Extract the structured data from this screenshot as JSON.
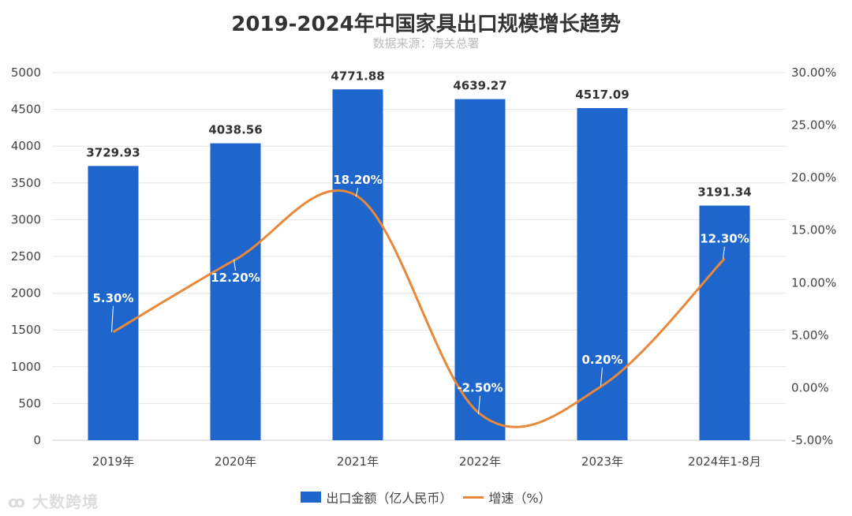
{
  "chart_data": {
    "type": "bar+line",
    "title": "2019-2024年中国家具出口规模增长趋势",
    "subtitle": "数据来源：海关总署",
    "categories": [
      "2019年",
      "2020年",
      "2021年",
      "2022年",
      "2023年",
      "2024年1-8月"
    ],
    "series": [
      {
        "name": "出口金额（亿人民币）",
        "type": "bar",
        "axis": "left",
        "color": "#1f66cc",
        "values": [
          3729.93,
          4038.56,
          4771.88,
          4639.27,
          4517.09,
          3191.34
        ],
        "labels": [
          "3729.93",
          "4038.56",
          "4771.88",
          "4639.27",
          "4517.09",
          "3191.34"
        ]
      },
      {
        "name": "增速（%）",
        "type": "line",
        "axis": "right",
        "color": "#e8883a",
        "smooth": true,
        "values": [
          5.3,
          12.2,
          18.2,
          -2.5,
          0.2,
          12.3
        ],
        "labels": [
          "5.30%",
          "12.20%",
          "18.20%",
          "-2.50%",
          "0.20%",
          "12.30%"
        ]
      }
    ],
    "left_axis": {
      "ylim": [
        0,
        5000
      ],
      "ticks": [
        "0",
        "500",
        "1000",
        "1500",
        "2000",
        "2500",
        "3000",
        "3500",
        "4000",
        "4500",
        "5000"
      ]
    },
    "right_axis": {
      "ylim": [
        -5,
        30
      ],
      "ticks": [
        "-5.00%",
        "0.00%",
        "5.00%",
        "10.00%",
        "15.00%",
        "20.00%",
        "25.00%",
        "30.00%"
      ]
    },
    "grid": true,
    "legend": "bottom"
  },
  "watermark": "大数跨境"
}
